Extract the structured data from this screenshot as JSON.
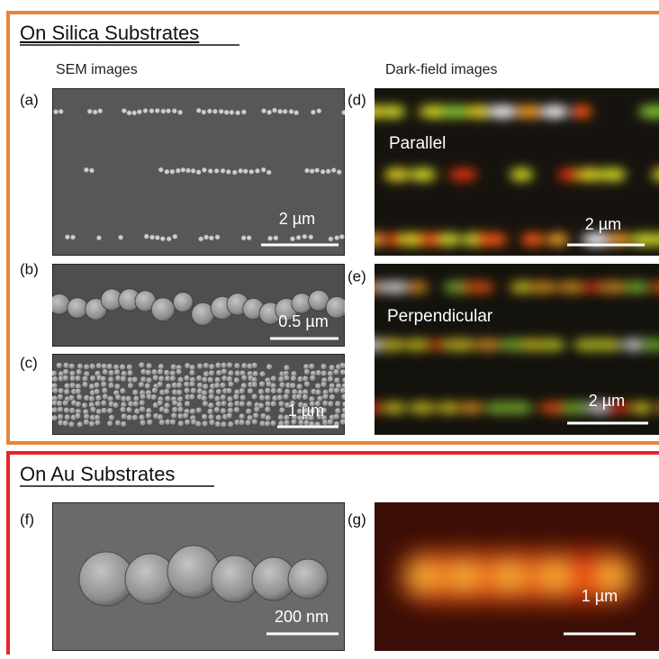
{
  "sections": [
    {
      "title": "On Silica Substrates",
      "column_headings": [
        "SEM images",
        "Dark-field images"
      ],
      "panels": [
        {
          "label": "(a)",
          "scale_bar": "2 µm"
        },
        {
          "label": "(b)",
          "scale_bar": "0.5 µm"
        },
        {
          "label": "(c)",
          "scale_bar": "1 µm"
        },
        {
          "label": "(d)",
          "scale_bar": "2 µm",
          "caption": "Parallel"
        },
        {
          "label": "(e)",
          "scale_bar": "2 µm",
          "caption": "Perpendicular"
        }
      ]
    },
    {
      "title": "On Au Substrates",
      "panels": [
        {
          "label": "(f)",
          "scale_bar": "200 nm"
        },
        {
          "label": "(g)",
          "scale_bar": "1 µm"
        }
      ]
    }
  ]
}
